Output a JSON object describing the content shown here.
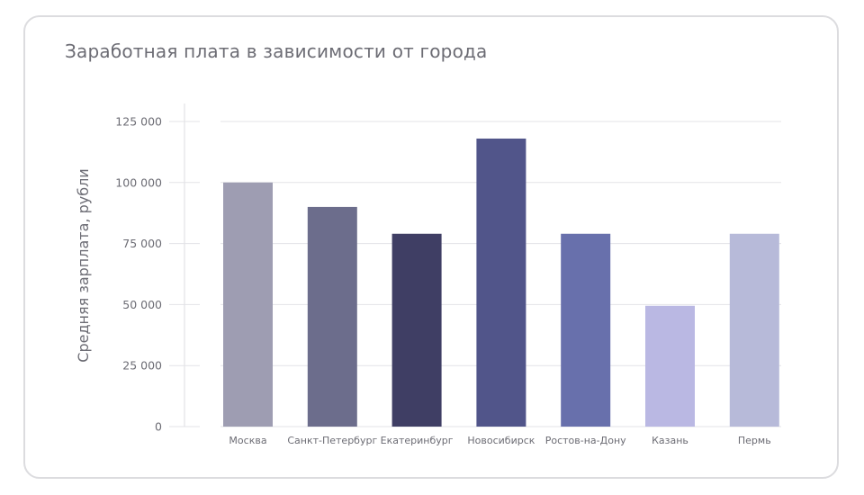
{
  "chart_data": {
    "type": "bar",
    "title": "Заработная плата в зависимости от города",
    "xlabel": "",
    "ylabel": "Средняя зарплата, рубли",
    "ylim": [
      0,
      125000
    ],
    "yticks": [
      0,
      25000,
      50000,
      75000,
      100000,
      125000
    ],
    "ytick_labels": [
      "0",
      "25 000",
      "50 000",
      "75 000",
      "100 000",
      "125 000"
    ],
    "grid": true,
    "categories": [
      "Москва",
      "Санкт-Петербург",
      "Екатеринбург",
      "Новосибирск",
      "Ростов-на-Дону",
      "Казань",
      "Пермь"
    ],
    "values": [
      100000,
      90000,
      79000,
      118000,
      79000,
      49500,
      79000
    ],
    "colors": [
      "#9e9db2",
      "#6c6d8c",
      "#3f3e64",
      "#51558a",
      "#6870ac",
      "#bab8e3",
      "#b7bad9"
    ]
  }
}
